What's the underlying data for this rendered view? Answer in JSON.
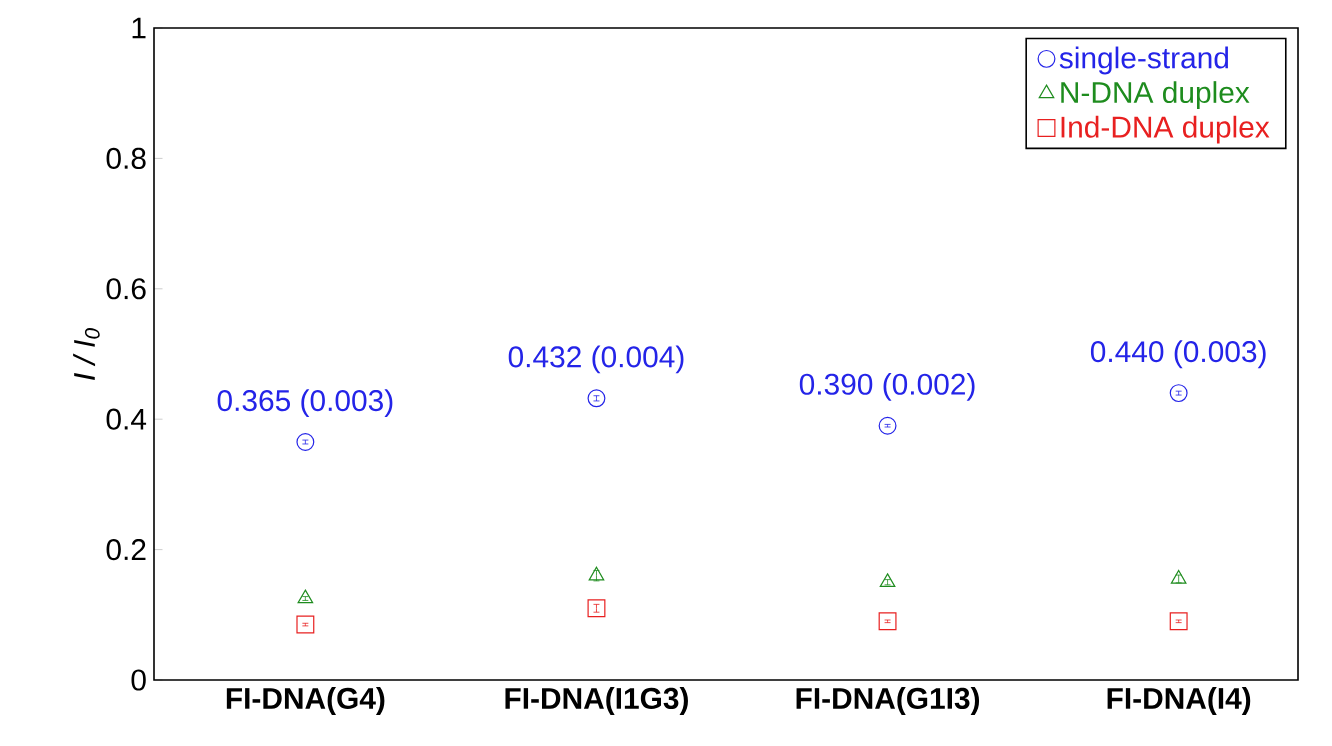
{
  "chart_data": {
    "type": "scatter",
    "ylabel": "I / I$_{0}$",
    "categories": [
      "FI-DNA(G4)",
      "FI-DNA(I1G3)",
      "FI-DNA(G1I3)",
      "FI-DNA(I4)"
    ],
    "series": [
      {
        "name": "single-strand",
        "color": "#2424e8",
        "marker": "circle",
        "values": [
          0.365,
          0.432,
          0.39,
          0.44
        ],
        "errors": [
          0.003,
          0.004,
          0.002,
          0.003
        ]
      },
      {
        "name": "N-DNA duplex",
        "color": "#1e8c1e",
        "marker": "triangle",
        "values": [
          0.125,
          0.16,
          0.15,
          0.155
        ],
        "errors": [
          0.003,
          0.008,
          0.004,
          0.006
        ]
      },
      {
        "name": "Ind-DNA duplex",
        "color": "#e82020",
        "marker": "square",
        "values": [
          0.085,
          0.11,
          0.09,
          0.09
        ],
        "errors": [
          0.002,
          0.006,
          0.002,
          0.002
        ]
      }
    ],
    "annotations": [
      {
        "text": "0.365 (0.003)",
        "x": "FI-DNA(G4)",
        "y": 0.365
      },
      {
        "text": "0.432 (0.004)",
        "x": "FI-DNA(I1G3)",
        "y": 0.432
      },
      {
        "text": "0.390 (0.002)",
        "x": "FI-DNA(G1I3)",
        "y": 0.39
      },
      {
        "text": "0.440 (0.003)",
        "x": "FI-DNA(I4)",
        "y": 0.44
      }
    ],
    "ylim": [
      0,
      1
    ],
    "yticks": [
      0,
      0.2,
      0.4,
      0.6,
      0.8,
      1
    ],
    "legend": "top right",
    "grid": false
  }
}
